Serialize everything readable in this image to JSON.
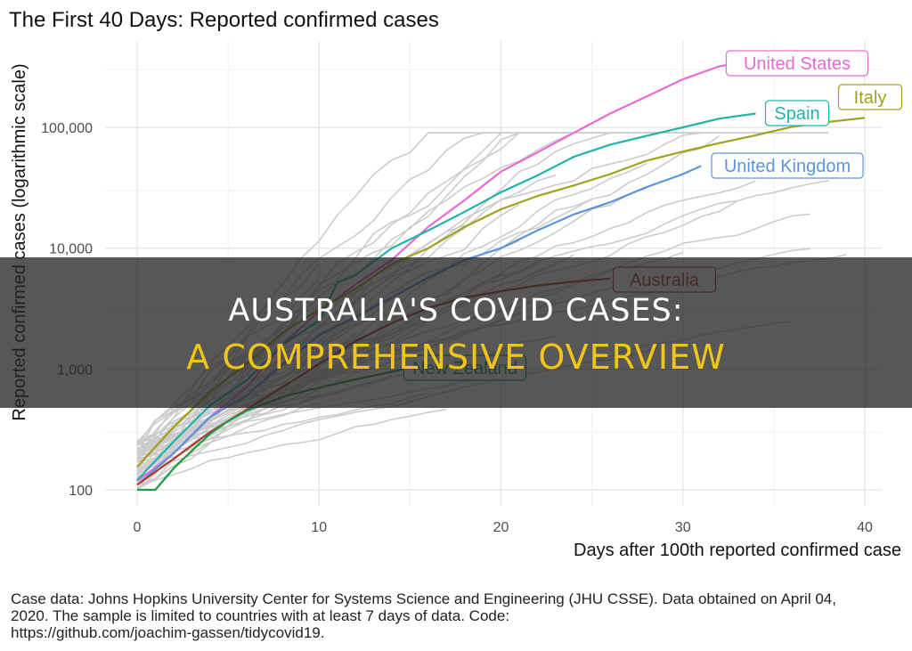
{
  "chart_data": {
    "type": "line",
    "title": "The First 40 Days: Reported confirmed cases",
    "xlabel": "Days after 100th reported confirmed case",
    "ylabel": "Reported confirmed cases (logarithmic scale)",
    "x_scale": "linear",
    "y_scale": "log10",
    "xlim": [
      0,
      40
    ],
    "ylim": [
      90,
      400000
    ],
    "x_ticks": [
      0,
      10,
      20,
      30,
      40
    ],
    "x_tick_labels": [
      "0",
      "10",
      "20",
      "30",
      "40"
    ],
    "y_ticks": [
      100,
      1000,
      10000,
      100000
    ],
    "y_tick_labels": [
      "100",
      "1,000",
      "10,000",
      "100,000"
    ],
    "grid": true,
    "legend": "labels at line ends",
    "series": [
      {
        "name": "United States",
        "color": "#e66ad4",
        "x": [
          0,
          2,
          4,
          6,
          8,
          10,
          12,
          14,
          16,
          18,
          20,
          22,
          24,
          26,
          28,
          30,
          32,
          33
        ],
        "y": [
          118,
          200,
          400,
          700,
          1600,
          3000,
          5000,
          8000,
          15000,
          25000,
          43000,
          62000,
          90000,
          130000,
          180000,
          250000,
          320000,
          340000
        ]
      },
      {
        "name": "Italy",
        "color": "#a3a11b",
        "x": [
          0,
          2,
          4,
          6,
          8,
          10,
          12,
          14,
          16,
          18,
          20,
          22,
          24,
          26,
          28,
          30,
          32,
          34,
          36,
          38,
          40
        ],
        "y": [
          155,
          330,
          650,
          1100,
          2000,
          3100,
          4600,
          7400,
          10000,
          15000,
          21000,
          27000,
          33000,
          41000,
          53000,
          63000,
          74000,
          86000,
          101000,
          111000,
          120000
        ]
      },
      {
        "name": "Spain",
        "color": "#22b3a6",
        "x": [
          0,
          2,
          4,
          6,
          8,
          10,
          11,
          12,
          14,
          16,
          18,
          20,
          22,
          24,
          26,
          28,
          30,
          32,
          34
        ],
        "y": [
          120,
          250,
          500,
          800,
          1600,
          2500,
          5200,
          6000,
          10000,
          14000,
          20000,
          29000,
          40000,
          57000,
          72000,
          85000,
          100000,
          118000,
          130000
        ]
      },
      {
        "name": "United Kingdom",
        "color": "#5d93dc",
        "x": [
          0,
          2,
          4,
          6,
          8,
          10,
          12,
          14,
          16,
          18,
          20,
          22,
          24,
          26,
          28,
          30,
          31
        ],
        "y": [
          110,
          200,
          400,
          600,
          1100,
          1900,
          2700,
          3900,
          5700,
          8000,
          10000,
          14000,
          19000,
          24000,
          32000,
          41000,
          48000
        ]
      },
      {
        "name": "Australia",
        "color": "#b03a2e",
        "x": [
          0,
          2,
          4,
          6,
          8,
          10,
          12,
          14,
          16,
          18,
          20,
          22,
          24,
          26
        ],
        "y": [
          110,
          180,
          300,
          460,
          710,
          1100,
          1700,
          2400,
          3200,
          3900,
          4400,
          4900,
          5300,
          5600
        ]
      },
      {
        "name": "New Zealand",
        "color": "#1a9b47",
        "x": [
          0,
          1,
          2,
          3,
          4,
          5,
          6,
          8,
          10,
          12,
          14,
          16
        ],
        "y": [
          100,
          100,
          150,
          210,
          290,
          370,
          450,
          590,
          700,
          820,
          950,
          1100
        ]
      }
    ],
    "background_series_color": "#cccccc",
    "background_series_count": 50
  },
  "caption": {
    "line1": "Case data: Johns Hopkins University Center for Systems Science and Engineering (JHU CSSE). Data obtained on April 04,",
    "line2": "2020. The sample is limited to countries with at least 7 days of data. Code:",
    "line3": "https://github.com/joachim-gassen/tidycovid19."
  },
  "banner": {
    "line1": "AUSTRALIA'S COVID CASES:",
    "line2": "A COMPREHENSIVE OVERVIEW"
  }
}
